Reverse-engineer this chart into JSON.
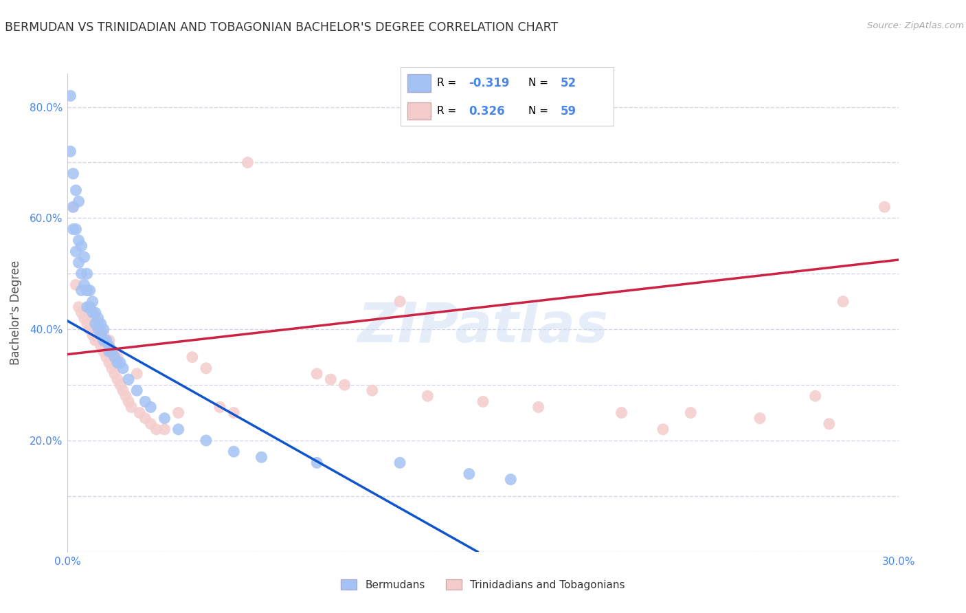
{
  "title": "BERMUDAN VS TRINIDADIAN AND TOBAGONIAN BACHELOR'S DEGREE CORRELATION CHART",
  "source": "Source: ZipAtlas.com",
  "ylabel": "Bachelor's Degree",
  "xlim": [
    0.0,
    0.3
  ],
  "ylim": [
    0.0,
    0.86
  ],
  "xtick_positions": [
    0.0,
    0.05,
    0.1,
    0.15,
    0.2,
    0.25,
    0.3
  ],
  "xticklabels": [
    "0.0%",
    "",
    "",
    "",
    "",
    "",
    "30.0%"
  ],
  "ytick_positions": [
    0.0,
    0.1,
    0.2,
    0.3,
    0.4,
    0.5,
    0.6,
    0.7,
    0.8
  ],
  "yticklabels": [
    "",
    "",
    "20.0%",
    "",
    "40.0%",
    "",
    "60.0%",
    "",
    "80.0%"
  ],
  "grid_color": "#d0d8e8",
  "background_color": "#ffffff",
  "watermark": "ZIPatlas",
  "legend_R_blue": "-0.319",
  "legend_N_blue": "52",
  "legend_R_pink": "0.326",
  "legend_N_pink": "59",
  "blue_color": "#a4c2f4",
  "pink_color": "#f4cccc",
  "blue_edge": "#6d9eeb",
  "pink_edge": "#e06666",
  "line_blue_color": "#1155cc",
  "line_pink_color": "#cc2244",
  "label_color": "#4a86e8",
  "legend_text_color": "#000000",
  "legend_value_color": "#4a86e8",
  "blue_scatter_x": [
    0.001,
    0.001,
    0.002,
    0.002,
    0.002,
    0.003,
    0.003,
    0.003,
    0.004,
    0.004,
    0.004,
    0.005,
    0.005,
    0.005,
    0.006,
    0.006,
    0.007,
    0.007,
    0.007,
    0.008,
    0.008,
    0.009,
    0.009,
    0.01,
    0.01,
    0.011,
    0.011,
    0.012,
    0.012,
    0.013,
    0.013,
    0.014,
    0.015,
    0.015,
    0.016,
    0.017,
    0.018,
    0.019,
    0.02,
    0.022,
    0.025,
    0.028,
    0.03,
    0.035,
    0.04,
    0.05,
    0.06,
    0.07,
    0.09,
    0.12,
    0.145,
    0.16
  ],
  "blue_scatter_y": [
    0.82,
    0.72,
    0.68,
    0.62,
    0.58,
    0.65,
    0.58,
    0.54,
    0.63,
    0.56,
    0.52,
    0.55,
    0.5,
    0.47,
    0.53,
    0.48,
    0.5,
    0.47,
    0.44,
    0.47,
    0.44,
    0.45,
    0.43,
    0.43,
    0.41,
    0.42,
    0.4,
    0.41,
    0.39,
    0.4,
    0.38,
    0.38,
    0.37,
    0.36,
    0.36,
    0.35,
    0.34,
    0.34,
    0.33,
    0.31,
    0.29,
    0.27,
    0.26,
    0.24,
    0.22,
    0.2,
    0.18,
    0.17,
    0.16,
    0.16,
    0.14,
    0.13
  ],
  "pink_scatter_x": [
    0.002,
    0.003,
    0.004,
    0.005,
    0.006,
    0.007,
    0.007,
    0.008,
    0.008,
    0.009,
    0.01,
    0.01,
    0.011,
    0.011,
    0.012,
    0.012,
    0.013,
    0.013,
    0.014,
    0.015,
    0.015,
    0.016,
    0.016,
    0.017,
    0.018,
    0.018,
    0.019,
    0.02,
    0.021,
    0.022,
    0.023,
    0.025,
    0.026,
    0.028,
    0.03,
    0.032,
    0.035,
    0.04,
    0.045,
    0.05,
    0.055,
    0.06,
    0.065,
    0.09,
    0.095,
    0.1,
    0.11,
    0.12,
    0.13,
    0.15,
    0.17,
    0.2,
    0.215,
    0.225,
    0.25,
    0.27,
    0.275,
    0.28,
    0.295
  ],
  "pink_scatter_y": [
    0.62,
    0.48,
    0.44,
    0.43,
    0.42,
    0.41,
    0.47,
    0.4,
    0.44,
    0.39,
    0.38,
    0.42,
    0.38,
    0.41,
    0.37,
    0.4,
    0.36,
    0.39,
    0.35,
    0.34,
    0.38,
    0.33,
    0.36,
    0.32,
    0.31,
    0.35,
    0.3,
    0.29,
    0.28,
    0.27,
    0.26,
    0.32,
    0.25,
    0.24,
    0.23,
    0.22,
    0.22,
    0.25,
    0.35,
    0.33,
    0.26,
    0.25,
    0.7,
    0.32,
    0.31,
    0.3,
    0.29,
    0.45,
    0.28,
    0.27,
    0.26,
    0.25,
    0.22,
    0.25,
    0.24,
    0.28,
    0.23,
    0.45,
    0.62
  ],
  "blue_line_x0": 0.0,
  "blue_line_y0": 0.415,
  "blue_line_x1": 0.148,
  "blue_line_y1": 0.0,
  "pink_line_x0": 0.0,
  "pink_line_y0": 0.355,
  "pink_line_x1": 0.3,
  "pink_line_y1": 0.525
}
